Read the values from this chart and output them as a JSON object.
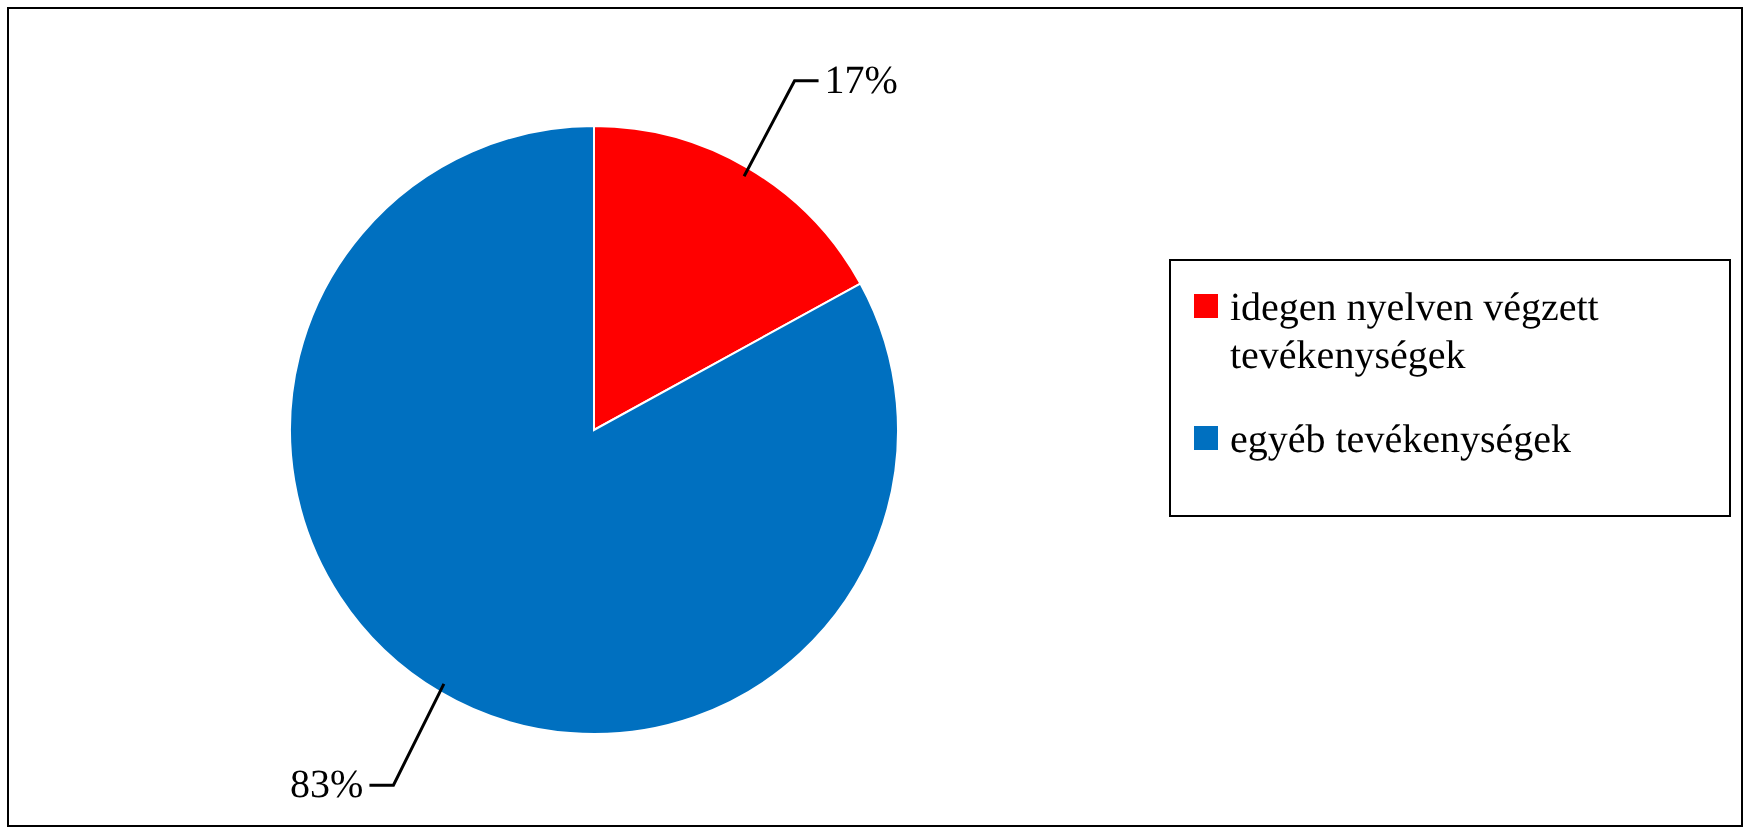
{
  "chart_data": {
    "type": "pie",
    "categories": [
      "idegen nyelven végzett tevékenységek",
      "egyéb tevékenységek"
    ],
    "values": [
      17,
      83
    ],
    "colors": [
      "#ff0000",
      "#0070c0"
    ],
    "value_labels": [
      "17%",
      "83%"
    ],
    "legend": "right"
  }
}
